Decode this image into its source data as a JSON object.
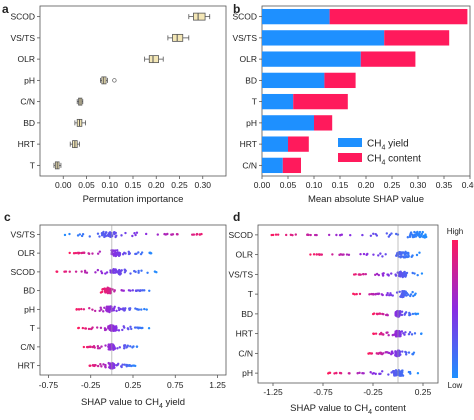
{
  "colors": {
    "blue": "#1e90ff",
    "pink": "#ff1a5c",
    "box_fill": "#f4e7b6",
    "box_edge": "#555555"
  },
  "chart_data": [
    {
      "panel": "a",
      "type": "boxplot",
      "orientation": "horizontal",
      "xlabel": "Permutation importance",
      "xlim": [
        -0.05,
        0.35
      ],
      "xticks": [
        0.0,
        0.05,
        0.1,
        0.15,
        0.2,
        0.25,
        0.3
      ],
      "xtick_labels": [
        "0.00",
        "0.05",
        "0.10",
        "0.15",
        "0.20",
        "0.25",
        "0.30"
      ],
      "categories": [
        "SCOD",
        "VS/TS",
        "OLR",
        "pH",
        "C/N",
        "BD",
        "HRT",
        "T"
      ],
      "boxes": [
        {
          "min": 0.27,
          "q1": 0.28,
          "median": 0.29,
          "q3": 0.305,
          "max": 0.315
        },
        {
          "min": 0.225,
          "q1": 0.235,
          "median": 0.245,
          "q3": 0.257,
          "max": 0.27
        },
        {
          "min": 0.175,
          "q1": 0.185,
          "median": 0.193,
          "q3": 0.205,
          "max": 0.215
        },
        {
          "min": 0.08,
          "q1": 0.083,
          "median": 0.087,
          "q3": 0.092,
          "max": 0.095,
          "outliers": [
            0.11
          ]
        },
        {
          "min": 0.03,
          "q1": 0.033,
          "median": 0.036,
          "q3": 0.04,
          "max": 0.042
        },
        {
          "min": 0.025,
          "q1": 0.03,
          "median": 0.035,
          "q3": 0.04,
          "max": 0.048
        },
        {
          "min": 0.015,
          "q1": 0.02,
          "median": 0.025,
          "q3": 0.03,
          "max": 0.035
        },
        {
          "min": -0.02,
          "q1": -0.017,
          "median": -0.013,
          "q3": -0.009,
          "max": -0.005
        }
      ]
    },
    {
      "panel": "b",
      "type": "bar",
      "stacked": true,
      "orientation": "horizontal",
      "xlabel": "Mean absolute SHAP value",
      "xlim": [
        0,
        0.4
      ],
      "xticks": [
        0,
        0.05,
        0.1,
        0.15,
        0.2,
        0.25,
        0.3,
        0.35,
        0.4
      ],
      "xtick_labels": [
        "0.00",
        "0.05",
        "0.10",
        "0.15",
        "0.20",
        "0.25",
        "0.30",
        "0.35",
        "0.40"
      ],
      "categories": [
        "SCOD",
        "VS/TS",
        "OLR",
        "BD",
        "T",
        "pH",
        "HRT",
        "C/N"
      ],
      "legend_position": "bottom-right",
      "series": [
        {
          "name": "CH",
          "sub": "4",
          "suffix": " yield",
          "color": "#1e90ff",
          "values": [
            0.13,
            0.235,
            0.19,
            0.12,
            0.06,
            0.1,
            0.05,
            0.04
          ]
        },
        {
          "name": "CH",
          "sub": "4",
          "suffix": " content",
          "color": "#ff1a5c",
          "values": [
            0.265,
            0.125,
            0.105,
            0.06,
            0.105,
            0.035,
            0.04,
            0.035
          ]
        }
      ]
    },
    {
      "panel": "c",
      "type": "scatter",
      "subtype": "shap-beeswarm",
      "xlabel_prefix": "SHAP value to CH",
      "xlabel_sub": "4",
      "xlabel_suffix": " yield",
      "xlim": [
        -0.85,
        1.35
      ],
      "xticks": [
        -0.75,
        -0.25,
        0.25,
        0.75,
        1.25
      ],
      "xtick_labels": [
        "-0.75",
        "-0.25",
        "0.25",
        "0.75",
        "1.25"
      ],
      "categories": [
        "VS/TS",
        "OLR",
        "SCOD",
        "BD",
        "pH",
        "T",
        "C/N",
        "HRT"
      ],
      "features": [
        {
          "min": -0.6,
          "max": 1.2,
          "center": -0.05
        },
        {
          "min": -0.5,
          "max": 0.5,
          "center": 0.05
        },
        {
          "min": -0.7,
          "max": 0.55,
          "center": 0.05
        },
        {
          "min": -0.15,
          "max": 0.5,
          "center": -0.05
        },
        {
          "min": -0.45,
          "max": 0.45,
          "center": -0.02
        },
        {
          "min": -0.4,
          "max": 0.45,
          "center": 0.0
        },
        {
          "min": -0.35,
          "max": 0.35,
          "center": 0.0
        },
        {
          "min": -0.3,
          "max": 0.3,
          "center": 0.0
        }
      ]
    },
    {
      "panel": "d",
      "type": "scatter",
      "subtype": "shap-beeswarm",
      "xlabel_prefix": "SHAP value to CH",
      "xlabel_sub": "4",
      "xlabel_suffix": " content",
      "xlim": [
        -1.4,
        0.4
      ],
      "xticks": [
        -1.25,
        -0.75,
        -0.25,
        0.25
      ],
      "xtick_labels": [
        "-1.25",
        "-0.75",
        "-0.25",
        "0.25"
      ],
      "categories": [
        "SCOD",
        "OLR",
        "VS/TS",
        "T",
        "BD",
        "HRT",
        "C/N",
        "pH"
      ],
      "features": [
        {
          "min": -1.3,
          "max": 0.3,
          "center": 0.2
        },
        {
          "min": -0.9,
          "max": 0.25,
          "center": 0.05
        },
        {
          "min": -0.5,
          "max": 0.25,
          "center": 0.05
        },
        {
          "min": -0.45,
          "max": 0.2,
          "center": 0.05
        },
        {
          "min": -0.25,
          "max": 0.2,
          "center": 0.0
        },
        {
          "min": -0.25,
          "max": 0.25,
          "center": 0.0
        },
        {
          "min": -0.3,
          "max": 0.2,
          "center": 0.0
        },
        {
          "min": -0.7,
          "max": 0.2,
          "center": 0.0
        }
      ],
      "colorbar": {
        "high_label": "High",
        "low_label": "Low",
        "colors": [
          "#ff1a5c",
          "#8a2be2",
          "#1e90ff"
        ]
      }
    }
  ]
}
